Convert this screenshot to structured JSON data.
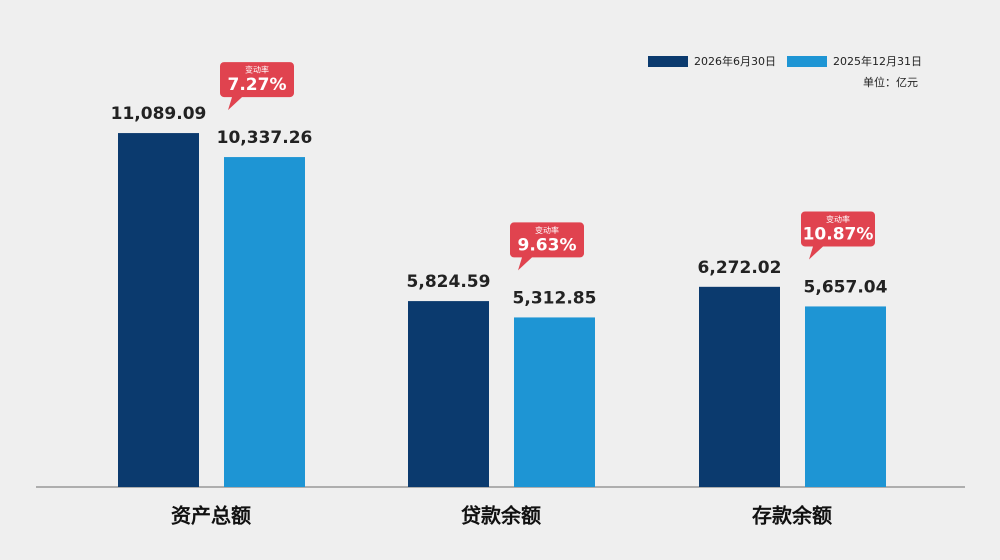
{
  "chart_data": {
    "type": "bar",
    "categories": [
      "资产总额",
      "贷款余额",
      "存款余额"
    ],
    "series": [
      {
        "name": "2026年6月30日",
        "color": "#0b3a6e",
        "values": [
          11089.09,
          5824.59,
          6272.02
        ],
        "value_labels": [
          "11,089.09",
          "5,824.59",
          "6,272.02"
        ]
      },
      {
        "name": "2025年12月31日",
        "color": "#1e95d4",
        "values": [
          10337.26,
          5312.85,
          5657.04
        ],
        "value_labels": [
          "10,337.26",
          "5,312.85",
          "5,657.04"
        ]
      }
    ],
    "unit": "单位：亿元",
    "change": {
      "label": "变动率",
      "color": "#e0434f",
      "values": [
        7.27,
        9.63,
        10.87
      ],
      "value_labels": [
        "7.27%",
        "9.63%",
        "10.87%"
      ]
    },
    "ylim": [
      0,
      12000
    ],
    "legend": "top-right"
  }
}
